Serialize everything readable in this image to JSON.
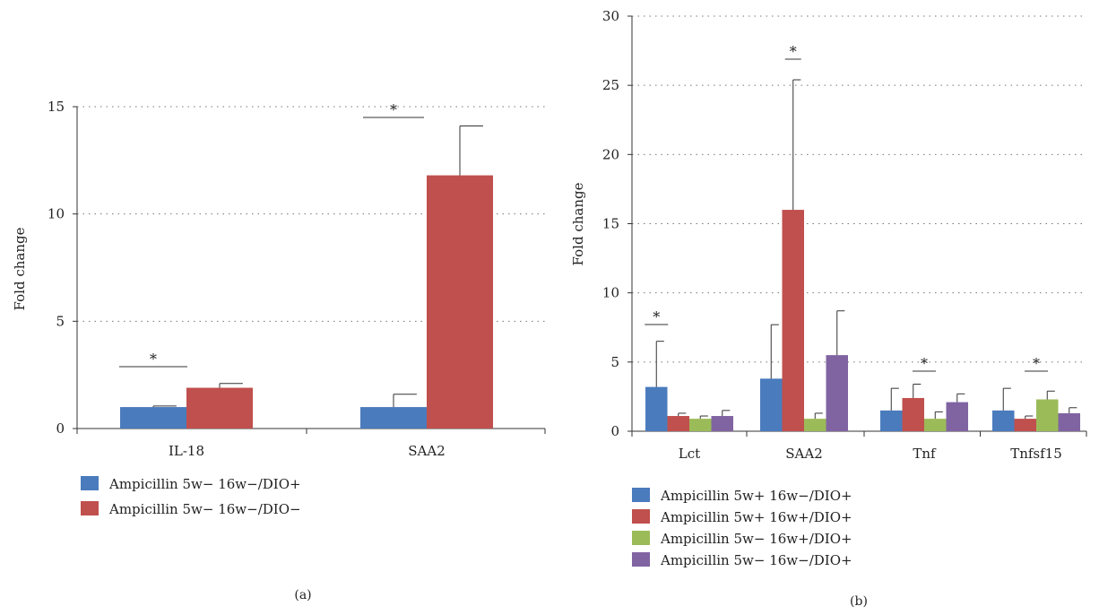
{
  "chart_data": [
    {
      "panel_label": "(a)",
      "type": "bar",
      "ylabel": "Fold change",
      "ylim": [
        0,
        15
      ],
      "yticks": [
        0,
        5,
        10,
        15
      ],
      "grid": true,
      "categories": [
        "IL-18",
        "SAA2"
      ],
      "series": [
        {
          "name": "Ampicillin 5w− 16w−/DIO+",
          "color": "#4a7bbd",
          "values": [
            1.0,
            1.0
          ],
          "errors": [
            0.05,
            0.6
          ]
        },
        {
          "name": "Ampicillin 5w− 16w−/DIO−",
          "color": "#c0504d",
          "values": [
            1.9,
            11.8
          ],
          "errors": [
            0.2,
            2.3
          ]
        }
      ],
      "significance": [
        {
          "category": "IL-18",
          "label": "*"
        },
        {
          "category": "SAA2",
          "label": "*"
        }
      ],
      "legend_position": "bottom-left"
    },
    {
      "panel_label": "(b)",
      "type": "bar",
      "ylabel": "Fold change",
      "ylim": [
        0,
        30
      ],
      "yticks": [
        0,
        5,
        10,
        15,
        20,
        25,
        30
      ],
      "grid": true,
      "categories": [
        "Lct",
        "SAA2",
        "Tnf",
        "Tnfsf15"
      ],
      "series": [
        {
          "name": "Ampicillin 5w+ 16w−/DIO+",
          "color": "#4a7bbd",
          "values": [
            3.2,
            3.8,
            1.5,
            1.5
          ],
          "errors": [
            3.3,
            3.9,
            1.6,
            1.6
          ]
        },
        {
          "name": "Ampicillin 5w+ 16w+/DIO+",
          "color": "#c0504d",
          "values": [
            1.1,
            16.0,
            2.4,
            0.9
          ],
          "errors": [
            0.2,
            9.4,
            1.0,
            0.2
          ]
        },
        {
          "name": "Ampicillin 5w− 16w+/DIO+",
          "color": "#9bbb59",
          "values": [
            0.9,
            0.9,
            0.9,
            2.3
          ],
          "errors": [
            0.2,
            0.4,
            0.5,
            0.6
          ]
        },
        {
          "name": "Ampicillin 5w− 16w−/DIO+",
          "color": "#8064a2",
          "values": [
            1.1,
            5.5,
            2.1,
            1.3
          ],
          "errors": [
            0.4,
            3.2,
            0.6,
            0.4
          ]
        }
      ],
      "significance": [
        {
          "category": "Lct",
          "label": "*"
        },
        {
          "category": "SAA2",
          "label": "*"
        },
        {
          "category": "Tnf",
          "label": "*"
        },
        {
          "category": "Tnfsf15",
          "label": "*"
        }
      ],
      "legend_position": "bottom-left"
    }
  ]
}
